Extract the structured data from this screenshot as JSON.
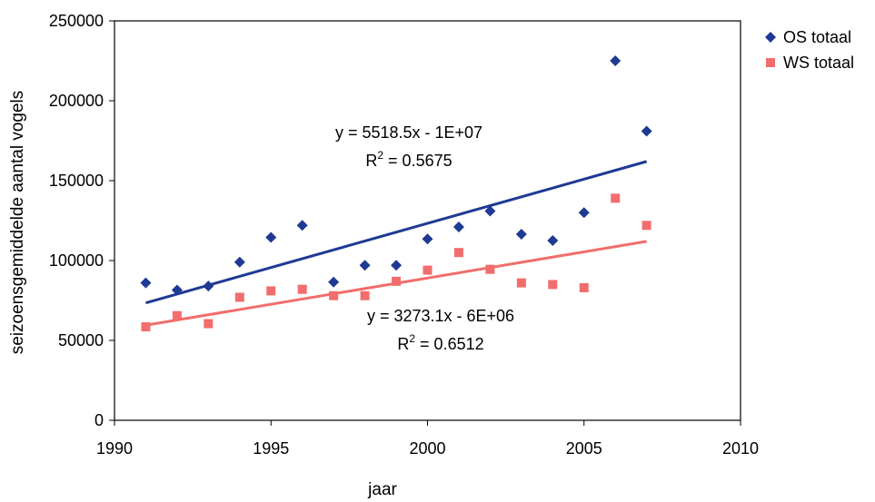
{
  "chart_data": {
    "type": "scatter",
    "xlabel": "jaar",
    "ylabel": "seizoensgemiddelde aantal vogels",
    "xlim": [
      1990,
      2010
    ],
    "ylim": [
      0,
      250000
    ],
    "xticks": [
      1990,
      1995,
      2000,
      2005,
      2010
    ],
    "yticks": [
      0,
      50000,
      100000,
      150000,
      200000,
      250000
    ],
    "grid": false,
    "legend_position": "right",
    "series": [
      {
        "name": "OS totaal",
        "marker": "diamond",
        "color": "#1f3a93",
        "x": [
          1991,
          1992,
          1993,
          1994,
          1995,
          1996,
          1997,
          1998,
          1999,
          2000,
          2001,
          2002,
          2003,
          2004,
          2005,
          2006,
          2007
        ],
        "y": [
          86000,
          81500,
          84000,
          99000,
          114500,
          122000,
          86500,
          97000,
          97000,
          113500,
          121000,
          131000,
          116500,
          112500,
          130000,
          225000,
          181000
        ],
        "trendline": {
          "x_range": [
            1991,
            2007
          ],
          "y_range": [
            73500,
            162000
          ],
          "color": "#1f3a93",
          "equation": "y = 5518.5x - 1E+07",
          "r2_label": "R",
          "r2_sup": "2",
          "r2_value": " = 0.5675"
        }
      },
      {
        "name": "WS totaal",
        "marker": "square",
        "color": "#f26d6d",
        "x": [
          1991,
          1992,
          1993,
          1994,
          1995,
          1996,
          1997,
          1998,
          1999,
          2000,
          2001,
          2002,
          2003,
          2004,
          2005,
          2006,
          2007
        ],
        "y": [
          58500,
          65500,
          60500,
          77000,
          81000,
          82000,
          78000,
          78000,
          87000,
          94000,
          105000,
          94500,
          86000,
          85000,
          83000,
          139000,
          122000
        ],
        "trendline": {
          "x_range": [
            1991,
            2007
          ],
          "y_range": [
            59500,
            112000
          ],
          "color": "#f26d6d",
          "equation": "y = 3273.1x - 6E+06",
          "r2_label": "R",
          "r2_sup": "2",
          "r2_value": " = 0.6512"
        }
      }
    ]
  }
}
